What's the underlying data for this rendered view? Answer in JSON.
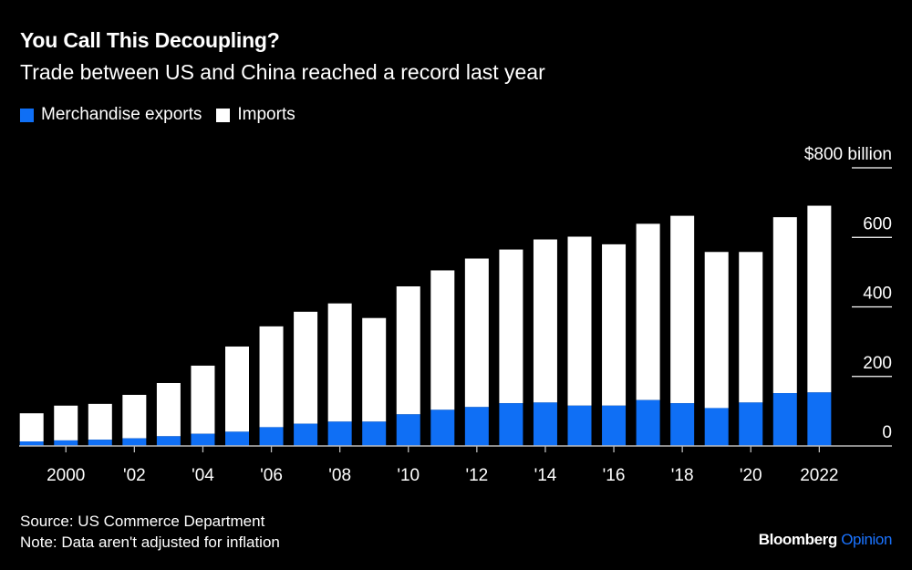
{
  "chart_data": {
    "type": "bar",
    "stacked": true,
    "title": "You Call This Decoupling?",
    "subtitle": "Trade between US and China reached a record last year",
    "x": [
      1999,
      2000,
      2001,
      2002,
      2003,
      2004,
      2005,
      2006,
      2007,
      2008,
      2009,
      2010,
      2011,
      2012,
      2013,
      2014,
      2015,
      2016,
      2017,
      2018,
      2019,
      2020,
      2021,
      2022
    ],
    "series": [
      {
        "name": "Merchandise exports",
        "color": "#0f6ff5",
        "values": [
          13,
          16,
          18,
          22,
          28,
          35,
          41,
          54,
          64,
          70,
          70,
          91,
          104,
          112,
          123,
          125,
          116,
          116,
          132,
          123,
          109,
          125,
          152,
          154
        ]
      },
      {
        "name": "Imports",
        "color": "#ffffff",
        "values": [
          81,
          100,
          103,
          125,
          153,
          196,
          245,
          290,
          322,
          340,
          298,
          368,
          401,
          427,
          442,
          469,
          486,
          464,
          507,
          539,
          449,
          433,
          506,
          537
        ]
      }
    ],
    "x_tick_labels": [
      "2000",
      "'02",
      "'04",
      "'06",
      "'08",
      "'10",
      "'12",
      "'14",
      "'16",
      "'18",
      "'20",
      "2022"
    ],
    "x_tick_years": [
      2000,
      2002,
      2004,
      2006,
      2008,
      2010,
      2012,
      2014,
      2016,
      2018,
      2020,
      2022
    ],
    "y_tick_labels": [
      "0",
      "200",
      "400",
      "600",
      "$800 billion"
    ],
    "y_tick_values": [
      0,
      200,
      400,
      600,
      800
    ],
    "ylim": [
      0,
      800
    ],
    "xlabel": "",
    "ylabel": "",
    "legend_position": "top-left",
    "grid": true
  },
  "footer": {
    "source": "Source: US Commerce Department",
    "note": "Note: Data aren't adjusted for inflation"
  },
  "logo": {
    "brand": "Bloomberg",
    "section": "Opinion"
  }
}
